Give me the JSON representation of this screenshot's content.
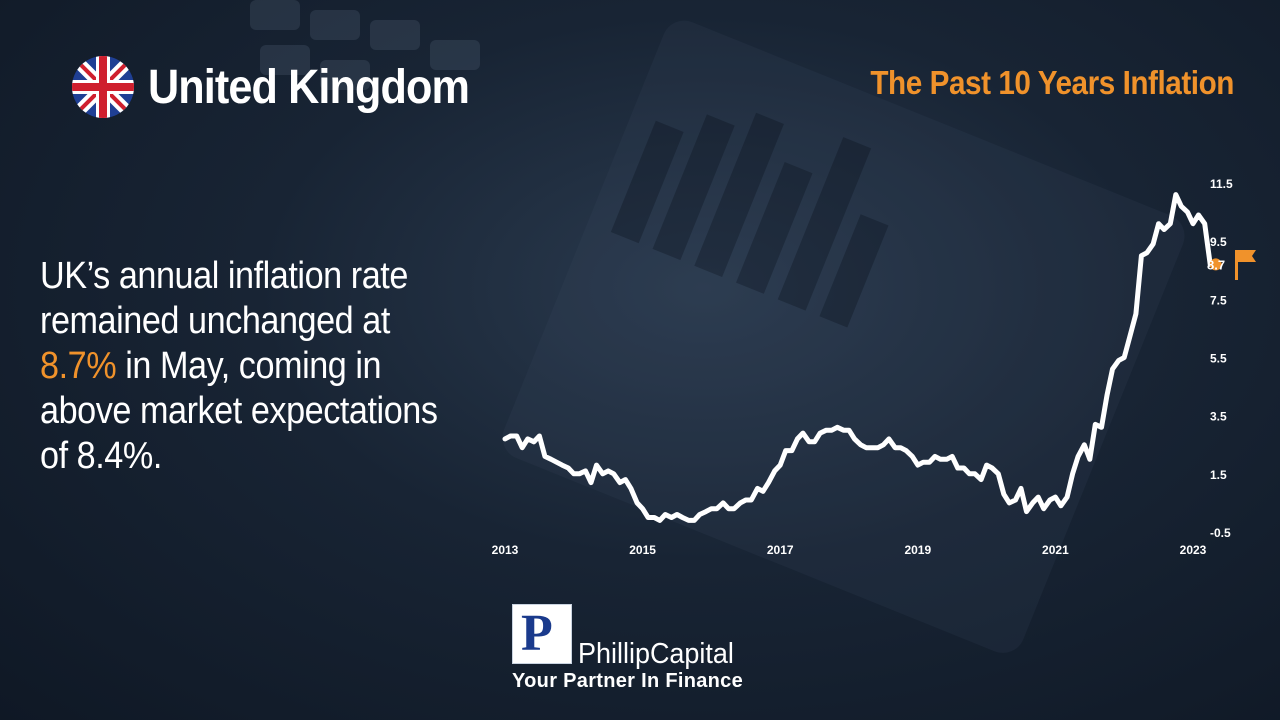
{
  "header": {
    "country": "United Kingdom",
    "subtitle": "The Past 10 Years Inflation"
  },
  "blurb": {
    "part1": "UK’s annual inflation rate remained unchanged at ",
    "highlight": "8.7%",
    "part2": " in May, coming in above market expectations of 8.4%."
  },
  "colors": {
    "accent": "#f0922b",
    "line": "#ffffff",
    "background": "#182434"
  },
  "icons": {
    "flag": "uk-flag-icon",
    "marker": "orange-flag-icon"
  },
  "logo": {
    "letter": "P",
    "name": "PhillipCapital",
    "tagline": "Your Partner In Finance"
  },
  "chart_data": {
    "type": "line",
    "title": "",
    "xlabel": "",
    "ylabel": "",
    "xlim": [
      2013,
      2023
    ],
    "ylim": [
      -0.5,
      11.5
    ],
    "x_ticks": [
      "2013",
      "2015",
      "2017",
      "2019",
      "2021",
      "2023"
    ],
    "y_ticks": [
      "11.5",
      "9.5",
      "7.5",
      "5.5",
      "3.5",
      "1.5",
      "-0.5"
    ],
    "last_value_label": "8.7",
    "series": [
      {
        "values": [
          [
            2013.0,
            2.7
          ],
          [
            2013.08,
            2.8
          ],
          [
            2013.17,
            2.8
          ],
          [
            2013.25,
            2.4
          ],
          [
            2013.33,
            2.7
          ],
          [
            2013.42,
            2.6
          ],
          [
            2013.5,
            2.8
          ],
          [
            2013.58,
            2.1
          ],
          [
            2013.67,
            2.0
          ],
          [
            2013.75,
            1.9
          ],
          [
            2013.83,
            1.8
          ],
          [
            2013.92,
            1.7
          ],
          [
            2014.0,
            1.5
          ],
          [
            2014.08,
            1.5
          ],
          [
            2014.17,
            1.6
          ],
          [
            2014.25,
            1.2
          ],
          [
            2014.33,
            1.8
          ],
          [
            2014.42,
            1.5
          ],
          [
            2014.5,
            1.6
          ],
          [
            2014.58,
            1.5
          ],
          [
            2014.67,
            1.2
          ],
          [
            2014.75,
            1.3
          ],
          [
            2014.83,
            1.0
          ],
          [
            2014.92,
            0.5
          ],
          [
            2015.0,
            0.3
          ],
          [
            2015.08,
            0.0
          ],
          [
            2015.17,
            0.0
          ],
          [
            2015.25,
            -0.1
          ],
          [
            2015.33,
            0.1
          ],
          [
            2015.42,
            0.0
          ],
          [
            2015.5,
            0.1
          ],
          [
            2015.58,
            0.0
          ],
          [
            2015.67,
            -0.1
          ],
          [
            2015.75,
            -0.1
          ],
          [
            2015.83,
            0.1
          ],
          [
            2015.92,
            0.2
          ],
          [
            2016.0,
            0.3
          ],
          [
            2016.08,
            0.3
          ],
          [
            2016.17,
            0.5
          ],
          [
            2016.25,
            0.3
          ],
          [
            2016.33,
            0.3
          ],
          [
            2016.42,
            0.5
          ],
          [
            2016.5,
            0.6
          ],
          [
            2016.58,
            0.6
          ],
          [
            2016.67,
            1.0
          ],
          [
            2016.75,
            0.9
          ],
          [
            2016.83,
            1.2
          ],
          [
            2016.92,
            1.6
          ],
          [
            2017.0,
            1.8
          ],
          [
            2017.08,
            2.3
          ],
          [
            2017.17,
            2.3
          ],
          [
            2017.25,
            2.7
          ],
          [
            2017.33,
            2.9
          ],
          [
            2017.42,
            2.6
          ],
          [
            2017.5,
            2.6
          ],
          [
            2017.58,
            2.9
          ],
          [
            2017.67,
            3.0
          ],
          [
            2017.75,
            3.0
          ],
          [
            2017.83,
            3.1
          ],
          [
            2017.92,
            3.0
          ],
          [
            2018.0,
            3.0
          ],
          [
            2018.08,
            2.7
          ],
          [
            2018.17,
            2.5
          ],
          [
            2018.25,
            2.4
          ],
          [
            2018.33,
            2.4
          ],
          [
            2018.42,
            2.4
          ],
          [
            2018.5,
            2.5
          ],
          [
            2018.58,
            2.7
          ],
          [
            2018.67,
            2.4
          ],
          [
            2018.75,
            2.4
          ],
          [
            2018.83,
            2.3
          ],
          [
            2018.92,
            2.1
          ],
          [
            2019.0,
            1.8
          ],
          [
            2019.08,
            1.9
          ],
          [
            2019.17,
            1.9
          ],
          [
            2019.25,
            2.1
          ],
          [
            2019.33,
            2.0
          ],
          [
            2019.42,
            2.0
          ],
          [
            2019.5,
            2.1
          ],
          [
            2019.58,
            1.7
          ],
          [
            2019.67,
            1.7
          ],
          [
            2019.75,
            1.5
          ],
          [
            2019.83,
            1.5
          ],
          [
            2019.92,
            1.3
          ],
          [
            2020.0,
            1.8
          ],
          [
            2020.08,
            1.7
          ],
          [
            2020.17,
            1.5
          ],
          [
            2020.25,
            0.8
          ],
          [
            2020.33,
            0.5
          ],
          [
            2020.42,
            0.6
          ],
          [
            2020.5,
            1.0
          ],
          [
            2020.58,
            0.2
          ],
          [
            2020.67,
            0.5
          ],
          [
            2020.75,
            0.7
          ],
          [
            2020.83,
            0.3
          ],
          [
            2020.92,
            0.6
          ],
          [
            2021.0,
            0.7
          ],
          [
            2021.08,
            0.4
          ],
          [
            2021.17,
            0.7
          ],
          [
            2021.25,
            1.5
          ],
          [
            2021.33,
            2.1
          ],
          [
            2021.42,
            2.5
          ],
          [
            2021.5,
            2.0
          ],
          [
            2021.58,
            3.2
          ],
          [
            2021.67,
            3.1
          ],
          [
            2021.75,
            4.2
          ],
          [
            2021.83,
            5.1
          ],
          [
            2021.92,
            5.4
          ],
          [
            2022.0,
            5.5
          ],
          [
            2022.08,
            6.2
          ],
          [
            2022.17,
            7.0
          ],
          [
            2022.25,
            9.0
          ],
          [
            2022.33,
            9.1
          ],
          [
            2022.42,
            9.4
          ],
          [
            2022.5,
            10.1
          ],
          [
            2022.58,
            9.9
          ],
          [
            2022.67,
            10.1
          ],
          [
            2022.75,
            11.1
          ],
          [
            2022.83,
            10.7
          ],
          [
            2022.92,
            10.5
          ],
          [
            2023.0,
            10.1
          ],
          [
            2023.08,
            10.4
          ],
          [
            2023.17,
            10.1
          ],
          [
            2023.25,
            8.7
          ],
          [
            2023.33,
            8.7
          ]
        ]
      }
    ]
  }
}
